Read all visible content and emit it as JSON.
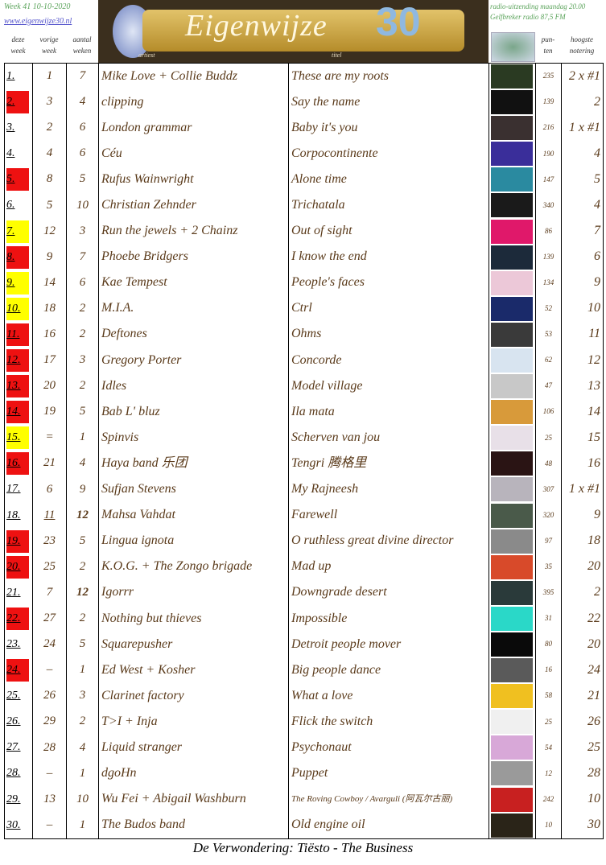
{
  "header": {
    "week": "Week 41  10-10-2020",
    "website": "www.eigenwijze30.nl",
    "broadcast": "radio-uitzending maandag 20.00",
    "station": "Gelfbreker radio 87,5 FM",
    "banner_title": "Eigenwijze",
    "banner_number": "30",
    "label_artist": "artiest",
    "label_title": "titel"
  },
  "columns": {
    "this_week": [
      "deze",
      "week"
    ],
    "prev_week": [
      "vorige",
      "week"
    ],
    "weeks": [
      "aantal",
      "weken"
    ],
    "points": [
      "pun-",
      "ten"
    ],
    "highest": [
      "hoogste",
      "notering"
    ]
  },
  "rows": [
    {
      "rank": "1.",
      "prev": "1",
      "weeks": "7",
      "artist": "Mike Love + Collie Buddz",
      "title": "These are my roots",
      "points": "235",
      "highest": "2 x #1",
      "mark": "",
      "cover": "#2a3a22"
    },
    {
      "rank": "2.",
      "prev": "3",
      "weeks": "4",
      "artist": "clipping",
      "title": "Say the name",
      "points": "139",
      "highest": "2",
      "mark": "red",
      "cover": "#111"
    },
    {
      "rank": "3.",
      "prev": "2",
      "weeks": "6",
      "artist": "London grammar",
      "title": "Baby it's you",
      "points": "216",
      "highest": "1 x #1",
      "mark": "",
      "cover": "#3a3030"
    },
    {
      "rank": "4.",
      "prev": "4",
      "weeks": "6",
      "artist": "Céu",
      "title": "Corpocontinente",
      "points": "190",
      "highest": "4",
      "mark": "",
      "cover": "#3a2e9a"
    },
    {
      "rank": "5.",
      "prev": "8",
      "weeks": "5",
      "artist": "Rufus Wainwright",
      "title": "Alone time",
      "points": "147",
      "highest": "5",
      "mark": "red",
      "cover": "#2a8aa0"
    },
    {
      "rank": "6.",
      "prev": "5",
      "weeks": "10",
      "artist": "Christian Zehnder",
      "title": "Trichatala",
      "points": "340",
      "highest": "4",
      "mark": "",
      "cover": "#1a1a1a"
    },
    {
      "rank": "7.",
      "prev": "12",
      "weeks": "3",
      "artist": "Run the jewels + 2 Chainz",
      "title": "Out of sight",
      "points": "86",
      "highest": "7",
      "mark": "yellow",
      "cover": "#e0186a"
    },
    {
      "rank": "8.",
      "prev": "9",
      "weeks": "7",
      "artist": "Phoebe Bridgers",
      "title": "I know the end",
      "points": "139",
      "highest": "6",
      "mark": "red",
      "cover": "#1c2a3a"
    },
    {
      "rank": "9.",
      "prev": "14",
      "weeks": "6",
      "artist": "Kae Tempest",
      "title": "People's faces",
      "points": "134",
      "highest": "9",
      "mark": "yellow",
      "cover": "#ecc8d8"
    },
    {
      "rank": "10.",
      "prev": "18",
      "weeks": "2",
      "artist": "M.I.A.",
      "title": "Ctrl",
      "points": "52",
      "highest": "10",
      "mark": "yellow",
      "cover": "#1a2a6a"
    },
    {
      "rank": "11.",
      "prev": "16",
      "weeks": "2",
      "artist": "Deftones",
      "title": "Ohms",
      "points": "53",
      "highest": "11",
      "mark": "red",
      "cover": "#3a3a3a"
    },
    {
      "rank": "12.",
      "prev": "17",
      "weeks": "3",
      "artist": "Gregory Porter",
      "title": "Concorde",
      "points": "62",
      "highest": "12",
      "mark": "red",
      "cover": "#d8e4f0"
    },
    {
      "rank": "13.",
      "prev": "20",
      "weeks": "2",
      "artist": "Idles",
      "title": "Model village",
      "points": "47",
      "highest": "13",
      "mark": "red",
      "cover": "#c8c8c8"
    },
    {
      "rank": "14.",
      "prev": "19",
      "weeks": "5",
      "artist": "Bab L' bluz",
      "title": "Ila mata",
      "points": "106",
      "highest": "14",
      "mark": "red",
      "cover": "#d89a3a"
    },
    {
      "rank": "15.",
      "prev": "=",
      "weeks": "1",
      "artist": "Spinvis",
      "title": "Scherven van jou",
      "points": "25",
      "highest": "15",
      "mark": "yellow",
      "cover": "#e8e0e8"
    },
    {
      "rank": "16.",
      "prev": "21",
      "weeks": "4",
      "artist": "Haya band 乐团",
      "title": "Tengri 腾格里",
      "points": "48",
      "highest": "16",
      "mark": "red",
      "cover": "#2a1414"
    },
    {
      "rank": "17.",
      "prev": "6",
      "weeks": "9",
      "artist": "Sufjan Stevens",
      "title": "My Rajneesh",
      "points": "307",
      "highest": "1 x #1",
      "mark": "",
      "cover": "#b8b4bc"
    },
    {
      "rank": "18.",
      "prev": "11",
      "weeks": "12",
      "artist": "Mahsa Vahdat",
      "title": "Farewell",
      "points": "320",
      "highest": "9",
      "mark": "",
      "cover": "#4a5a4a"
    },
    {
      "rank": "19.",
      "prev": "23",
      "weeks": "5",
      "artist": "Lingua ignota",
      "title": "O ruthless great divine director",
      "points": "97",
      "highest": "18",
      "mark": "red",
      "cover": "#8a8a8a"
    },
    {
      "rank": "20.",
      "prev": "25",
      "weeks": "2",
      "artist": "K.O.G. + The Zongo brigade",
      "title": "Mad up",
      "points": "35",
      "highest": "20",
      "mark": "red",
      "cover": "#d84a2a"
    },
    {
      "rank": "21.",
      "prev": "7",
      "weeks": "12",
      "artist": "Igorrr",
      "title": "Downgrade desert",
      "points": "395",
      "highest": "2",
      "mark": "",
      "cover": "#2a3a3a"
    },
    {
      "rank": "22.",
      "prev": "27",
      "weeks": "2",
      "artist": "Nothing but thieves",
      "title": "Impossible",
      "points": "31",
      "highest": "22",
      "mark": "red",
      "cover": "#2ad8c8"
    },
    {
      "rank": "23.",
      "prev": "24",
      "weeks": "5",
      "artist": "Squarepusher",
      "title": "Detroit people mover",
      "points": "80",
      "highest": "20",
      "mark": "",
      "cover": "#0a0a0a"
    },
    {
      "rank": "24.",
      "prev": "–",
      "weeks": "1",
      "artist": "Ed West + Kosher",
      "title": "Big people dance",
      "points": "16",
      "highest": "24",
      "mark": "red",
      "cover": "#5a5a5a"
    },
    {
      "rank": "25.",
      "prev": "26",
      "weeks": "3",
      "artist": "Clarinet factory",
      "title": "What a love",
      "points": "58",
      "highest": "21",
      "mark": "",
      "cover": "#f0c020"
    },
    {
      "rank": "26.",
      "prev": "29",
      "weeks": "2",
      "artist": "T>I + Inja",
      "title": "Flick the switch",
      "points": "25",
      "highest": "26",
      "mark": "",
      "cover": "#f0f0f0"
    },
    {
      "rank": "27.",
      "prev": "28",
      "weeks": "4",
      "artist": "Liquid stranger",
      "title": "Psychonaut",
      "points": "54",
      "highest": "25",
      "mark": "",
      "cover": "#d8a8d8"
    },
    {
      "rank": "28.",
      "prev": "–",
      "weeks": "1",
      "artist": "dgoHn",
      "title": "Puppet",
      "points": "12",
      "highest": "28",
      "mark": "",
      "cover": "#9a9a9a"
    },
    {
      "rank": "29.",
      "prev": "13",
      "weeks": "10",
      "artist": "Wu Fei + Abigail Washburn",
      "title": "The Roving Cowboy / Avarguli (阿瓦尔古丽)",
      "points": "242",
      "highest": "10",
      "mark": "",
      "cover": "#c82020"
    },
    {
      "rank": "30.",
      "prev": "–",
      "weeks": "1",
      "artist": "The Budos band",
      "title": "Old engine oil",
      "points": "10",
      "highest": "30",
      "mark": "",
      "cover": "#2a2418"
    }
  ],
  "footer": "De Verwondering: Tiësto - The Business",
  "colors": {
    "red": "#ee1111",
    "yellow": "#ffff00",
    "text": "#5a3a1a",
    "green": "#5aa35a"
  }
}
